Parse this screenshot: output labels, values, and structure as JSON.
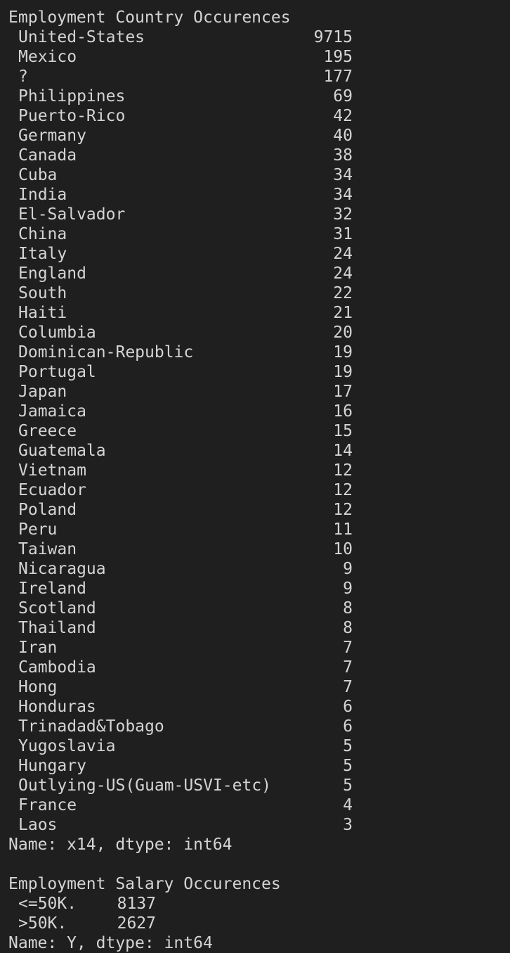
{
  "country_section": {
    "header": "Employment Country Occurences",
    "rows": [
      {
        "name": "United-States",
        "count": "9715"
      },
      {
        "name": "Mexico",
        "count": "195"
      },
      {
        "name": "?",
        "count": "177"
      },
      {
        "name": "Philippines",
        "count": "69"
      },
      {
        "name": "Puerto-Rico",
        "count": "42"
      },
      {
        "name": "Germany",
        "count": "40"
      },
      {
        "name": "Canada",
        "count": "38"
      },
      {
        "name": "Cuba",
        "count": "34"
      },
      {
        "name": "India",
        "count": "34"
      },
      {
        "name": "El-Salvador",
        "count": "32"
      },
      {
        "name": "China",
        "count": "31"
      },
      {
        "name": "Italy",
        "count": "24"
      },
      {
        "name": "England",
        "count": "24"
      },
      {
        "name": "South",
        "count": "22"
      },
      {
        "name": "Haiti",
        "count": "21"
      },
      {
        "name": "Columbia",
        "count": "20"
      },
      {
        "name": "Dominican-Republic",
        "count": "19"
      },
      {
        "name": "Portugal",
        "count": "19"
      },
      {
        "name": "Japan",
        "count": "17"
      },
      {
        "name": "Jamaica",
        "count": "16"
      },
      {
        "name": "Greece",
        "count": "15"
      },
      {
        "name": "Guatemala",
        "count": "14"
      },
      {
        "name": "Vietnam",
        "count": "12"
      },
      {
        "name": "Ecuador",
        "count": "12"
      },
      {
        "name": "Poland",
        "count": "12"
      },
      {
        "name": "Peru",
        "count": "11"
      },
      {
        "name": "Taiwan",
        "count": "10"
      },
      {
        "name": "Nicaragua",
        "count": "9"
      },
      {
        "name": "Ireland",
        "count": "9"
      },
      {
        "name": "Scotland",
        "count": "8"
      },
      {
        "name": "Thailand",
        "count": "8"
      },
      {
        "name": "Iran",
        "count": "7"
      },
      {
        "name": "Cambodia",
        "count": "7"
      },
      {
        "name": "Hong",
        "count": "7"
      },
      {
        "name": "Honduras",
        "count": "6"
      },
      {
        "name": "Trinadad&Tobago",
        "count": "6"
      },
      {
        "name": "Yugoslavia",
        "count": "5"
      },
      {
        "name": "Hungary",
        "count": "5"
      },
      {
        "name": "Outlying-US(Guam-USVI-etc)",
        "count": "5"
      },
      {
        "name": "France",
        "count": "4"
      },
      {
        "name": "Laos",
        "count": "3"
      }
    ],
    "footer": "Name: x14, dtype: int64"
  },
  "salary_section": {
    "header": "Employment Salary Occurences",
    "rows": [
      {
        "name": "<=50K.",
        "count": "8137"
      },
      {
        "name": ">50K.",
        "count": "2627"
      }
    ],
    "footer": "Name: Y, dtype: int64"
  },
  "colors": {
    "background": "#1f1f1f",
    "text": "#d4d4d4"
  }
}
